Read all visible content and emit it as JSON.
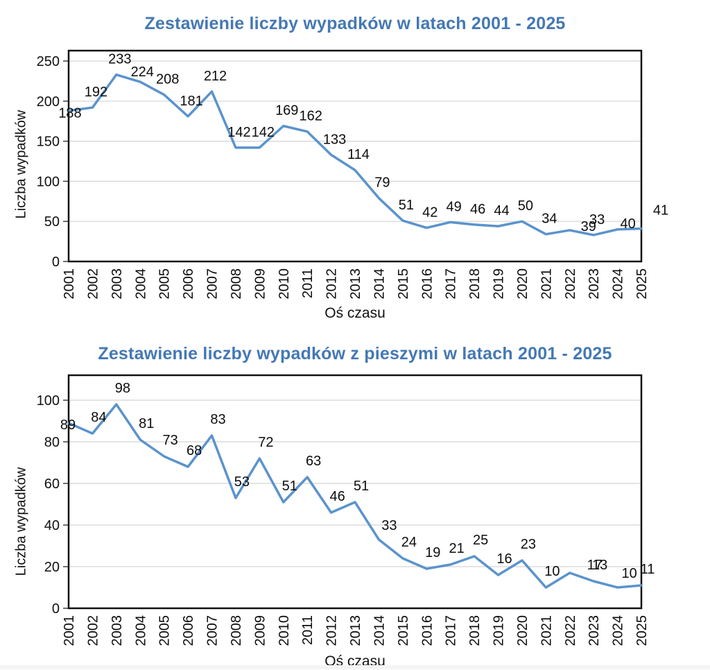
{
  "style": {
    "title_color": "#4478B4",
    "line_color": "#5B93CC",
    "grid_color": "#D3D3D3",
    "frame_color": "#111111",
    "tick_color": "#404040",
    "label_color": "#0d0d0d",
    "background": "#ffffff"
  },
  "chart_data": [
    {
      "type": "line",
      "title": "Zestawienie liczby wypadków w latach 2001 - 2025",
      "xlabel": "Oś czasu",
      "ylabel": "Liczba wypadków",
      "categories": [
        "2001",
        "2002",
        "2003",
        "2004",
        "2005",
        "2006",
        "2007",
        "2008",
        "2009",
        "2010",
        "2011",
        "2012",
        "2013",
        "2014",
        "2015",
        "2016",
        "2017",
        "2018",
        "2019",
        "2020",
        "2021",
        "2022",
        "2023",
        "2024",
        "2025"
      ],
      "values": [
        188,
        192,
        233,
        224,
        208,
        181,
        212,
        142,
        142,
        169,
        162,
        133,
        114,
        79,
        51,
        42,
        49,
        46,
        44,
        50,
        34,
        39,
        33,
        40,
        41
      ],
      "ylim": [
        0,
        250
      ],
      "ytick_step": 50,
      "grid": true,
      "legend": "none",
      "label_default_offset": [
        5,
        -23
      ],
      "label_offsets": {
        "0": [
          2,
          3
        ],
        "3": [
          3,
          -15
        ],
        "21": [
          27,
          -6
        ],
        "23": [
          15,
          -9
        ],
        "24": [
          28,
          -27
        ]
      }
    },
    {
      "type": "line",
      "title": "Zestawienie liczby wypadków z pieszymi w latach 2001 - 2025",
      "xlabel": "Oś czasu",
      "ylabel": "Liczba wypadków",
      "categories": [
        "2001",
        "2002",
        "2003",
        "2004",
        "2005",
        "2006",
        "2007",
        "2008",
        "2009",
        "2010",
        "2011",
        "2012",
        "2013",
        "2014",
        "2015",
        "2016",
        "2017",
        "2018",
        "2019",
        "2020",
        "2021",
        "2022",
        "2023",
        "2024",
        "2025"
      ],
      "values": [
        89,
        84,
        98,
        81,
        73,
        68,
        83,
        53,
        72,
        51,
        63,
        46,
        51,
        33,
        24,
        19,
        21,
        25,
        16,
        23,
        10,
        17,
        13,
        10,
        11
      ],
      "ylim": [
        0,
        100
      ],
      "ytick_step": 20,
      "grid": true,
      "legend": "none",
      "label_default_offset": [
        9,
        -24
      ],
      "label_offsets": {
        "0": [
          -1,
          2
        ],
        "13": [
          15,
          -21
        ],
        "21": [
          36,
          -12
        ],
        "23": [
          17,
          -21
        ]
      }
    }
  ]
}
